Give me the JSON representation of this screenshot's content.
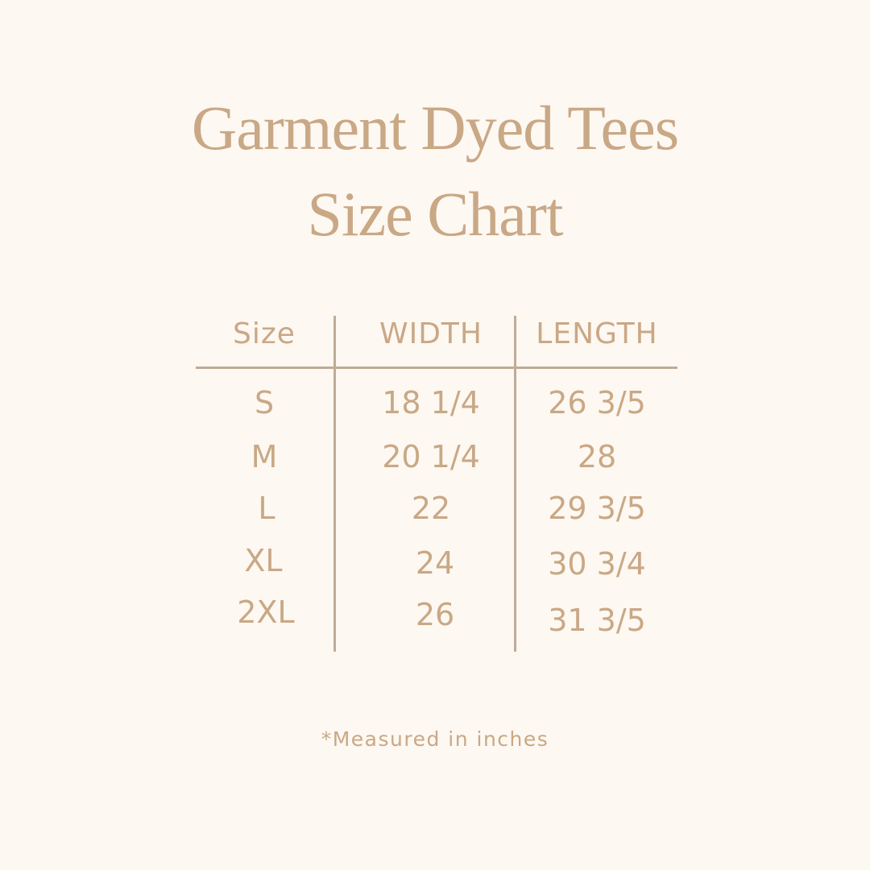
{
  "title": {
    "line1": "Garment Dyed Tees",
    "line2": "Size Chart"
  },
  "table": {
    "headers": [
      "Size",
      "WIDTH",
      "LENGTH"
    ],
    "rows": [
      [
        "S",
        "18 1/4",
        "26 3/5"
      ],
      [
        "M",
        "20 1/4",
        "28"
      ],
      [
        "L",
        "22",
        "29 3/5"
      ],
      [
        "XL",
        "24",
        "30 3/4"
      ],
      [
        "2XL",
        "26",
        "31 3/5"
      ]
    ]
  },
  "footnote": "*Measured in inches",
  "colors": {
    "background": "#fdf8f1",
    "text": "#c9a886",
    "lines": "#bfab97"
  }
}
